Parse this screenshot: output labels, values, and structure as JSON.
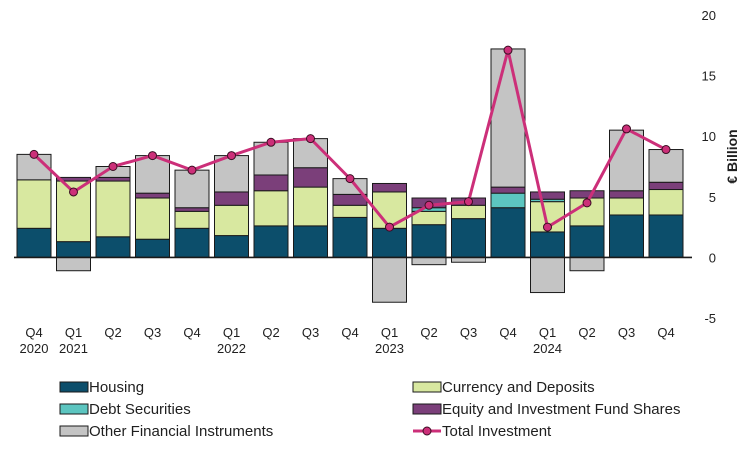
{
  "chart_data": {
    "type": "bar",
    "stacked": true,
    "title": "",
    "xlabel": "",
    "ylabel": "€ Billion",
    "ylim": [
      -5,
      20
    ],
    "yticks": [
      -5,
      0,
      5,
      10,
      15,
      20
    ],
    "categories": [
      "Q4",
      "Q1",
      "Q2",
      "Q3",
      "Q4",
      "Q1",
      "Q2",
      "Q3",
      "Q4",
      "Q1",
      "Q2",
      "Q3",
      "Q4",
      "Q1",
      "Q2",
      "Q3",
      "Q4"
    ],
    "year_labels": [
      "2020",
      "2021",
      "",
      "",
      "",
      "2022",
      "",
      "",
      "",
      "2023",
      "",
      "",
      "",
      "2024",
      "",
      "",
      ""
    ],
    "series": [
      {
        "name": "Housing",
        "color": "#0c4e6b",
        "values": [
          2.4,
          1.3,
          1.7,
          1.5,
          2.4,
          1.8,
          2.6,
          2.6,
          3.3,
          2.4,
          2.7,
          3.2,
          4.1,
          2.1,
          2.6,
          3.5,
          3.5
        ]
      },
      {
        "name": "Currency and Deposits",
        "color": "#d8e8a0",
        "values": [
          4.0,
          5.0,
          4.6,
          3.4,
          1.4,
          2.5,
          2.9,
          3.2,
          1.0,
          3.0,
          1.1,
          1.1,
          0,
          2.5,
          2.3,
          1.4,
          2.1
        ]
      },
      {
        "name": "Debt Securities",
        "color": "#5cc5c0",
        "values": [
          0,
          0,
          0,
          0,
          0,
          0,
          0,
          0,
          0,
          0,
          0.3,
          0,
          1.2,
          0.2,
          0,
          0,
          0
        ]
      },
      {
        "name": "Equity and Investment Fund Shares",
        "color": "#7b3f7a",
        "values": [
          0,
          0.3,
          0.3,
          0.4,
          0.3,
          1.1,
          1.3,
          1.6,
          0.9,
          0.7,
          0.8,
          0.6,
          0.5,
          0.6,
          0.6,
          0.6,
          0.6
        ]
      },
      {
        "name": "Other Financial Instruments",
        "color": "#c4c4c4",
        "values": [
          2.1,
          -1.1,
          0.9,
          3.1,
          3.1,
          3.0,
          2.7,
          2.4,
          1.3,
          -3.7,
          -0.6,
          -0.4,
          11.4,
          -2.9,
          -1.1,
          5.0,
          2.7
        ]
      },
      {
        "name": "Total Investment",
        "color": "#cc2f79",
        "type": "line",
        "values": [
          8.5,
          5.4,
          7.5,
          8.4,
          7.2,
          8.4,
          9.5,
          9.8,
          6.5,
          2.5,
          4.3,
          4.6,
          17.1,
          2.5,
          4.5,
          10.6,
          8.9
        ]
      }
    ],
    "legend": {
      "position": "bottom",
      "columns": 2
    },
    "grid": false
  }
}
